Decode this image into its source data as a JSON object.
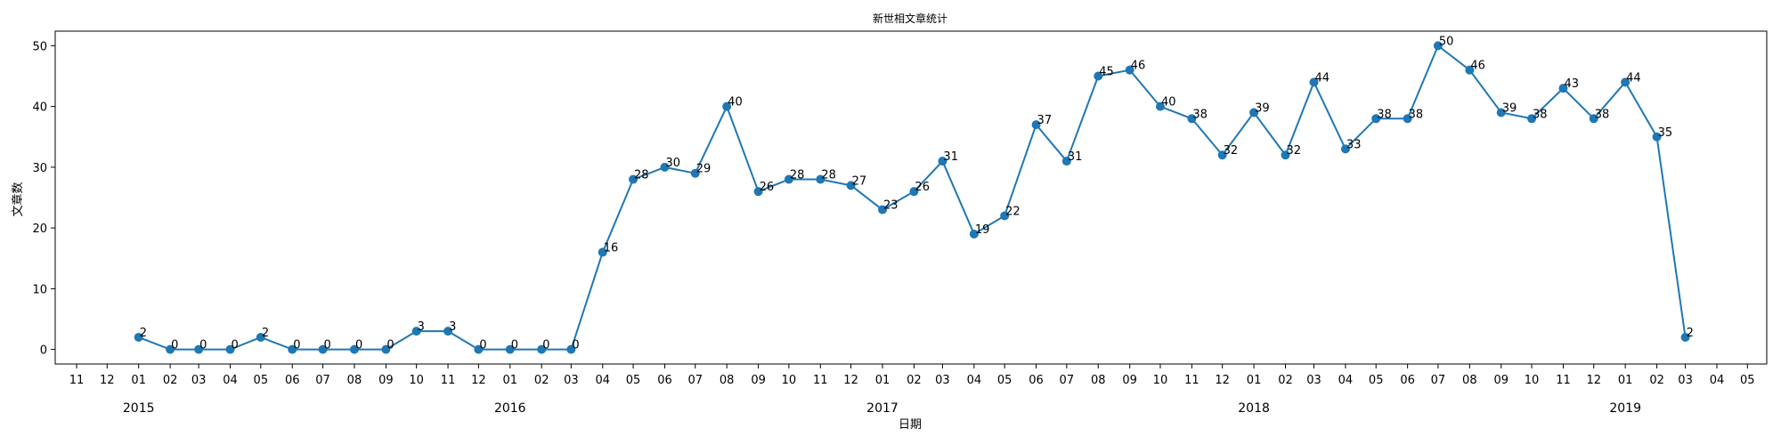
{
  "chart_data": {
    "type": "line",
    "title": "新世相文章统计",
    "xlabel": "日期",
    "ylabel": "文章数",
    "ylim": [
      -2.4,
      52.4
    ],
    "xlim": [
      "2014-10-11",
      "2019-05-20"
    ],
    "yticks": [
      0,
      10,
      20,
      30,
      40,
      50
    ],
    "grid": false,
    "legend": "none",
    "color": "#1f77b4",
    "x_ticks": [
      {
        "date": "2014-11",
        "label": "11"
      },
      {
        "date": "2014-12",
        "label": "12"
      },
      {
        "date": "2015-01",
        "label": "01"
      },
      {
        "date": "2015-02",
        "label": "02"
      },
      {
        "date": "2015-03",
        "label": "03"
      },
      {
        "date": "2015-04",
        "label": "04"
      },
      {
        "date": "2015-05",
        "label": "05"
      },
      {
        "date": "2015-06",
        "label": "06"
      },
      {
        "date": "2015-07",
        "label": "07"
      },
      {
        "date": "2015-08",
        "label": "08"
      },
      {
        "date": "2015-09",
        "label": "09"
      },
      {
        "date": "2015-10",
        "label": "10"
      },
      {
        "date": "2015-11",
        "label": "11"
      },
      {
        "date": "2015-12",
        "label": "12"
      },
      {
        "date": "2016-01",
        "label": "01"
      },
      {
        "date": "2016-02",
        "label": "02"
      },
      {
        "date": "2016-03",
        "label": "03"
      },
      {
        "date": "2016-04",
        "label": "04"
      },
      {
        "date": "2016-05",
        "label": "05"
      },
      {
        "date": "2016-06",
        "label": "06"
      },
      {
        "date": "2016-07",
        "label": "07"
      },
      {
        "date": "2016-08",
        "label": "08"
      },
      {
        "date": "2016-09",
        "label": "09"
      },
      {
        "date": "2016-10",
        "label": "10"
      },
      {
        "date": "2016-11",
        "label": "11"
      },
      {
        "date": "2016-12",
        "label": "12"
      },
      {
        "date": "2017-01",
        "label": "01"
      },
      {
        "date": "2017-02",
        "label": "02"
      },
      {
        "date": "2017-03",
        "label": "03"
      },
      {
        "date": "2017-04",
        "label": "04"
      },
      {
        "date": "2017-05",
        "label": "05"
      },
      {
        "date": "2017-06",
        "label": "06"
      },
      {
        "date": "2017-07",
        "label": "07"
      },
      {
        "date": "2017-08",
        "label": "08"
      },
      {
        "date": "2017-09",
        "label": "09"
      },
      {
        "date": "2017-10",
        "label": "10"
      },
      {
        "date": "2017-11",
        "label": "11"
      },
      {
        "date": "2017-12",
        "label": "12"
      },
      {
        "date": "2018-01",
        "label": "01"
      },
      {
        "date": "2018-02",
        "label": "02"
      },
      {
        "date": "2018-03",
        "label": "03"
      },
      {
        "date": "2018-04",
        "label": "04"
      },
      {
        "date": "2018-05",
        "label": "05"
      },
      {
        "date": "2018-06",
        "label": "06"
      },
      {
        "date": "2018-07",
        "label": "07"
      },
      {
        "date": "2018-08",
        "label": "08"
      },
      {
        "date": "2018-09",
        "label": "09"
      },
      {
        "date": "2018-10",
        "label": "10"
      },
      {
        "date": "2018-11",
        "label": "11"
      },
      {
        "date": "2018-12",
        "label": "12"
      },
      {
        "date": "2019-01",
        "label": "01"
      },
      {
        "date": "2019-02",
        "label": "02"
      },
      {
        "date": "2019-03",
        "label": "03"
      },
      {
        "date": "2019-04",
        "label": "04"
      },
      {
        "date": "2019-05",
        "label": "05"
      }
    ],
    "year_labels": [
      {
        "date": "2015-01",
        "label": "2015"
      },
      {
        "date": "2016-01",
        "label": "2016"
      },
      {
        "date": "2017-01",
        "label": "2017"
      },
      {
        "date": "2018-01",
        "label": "2018"
      },
      {
        "date": "2019-01",
        "label": "2019"
      }
    ],
    "series": [
      {
        "points": [
          {
            "x": "2015-01",
            "y": 2
          },
          {
            "x": "2015-02",
            "y": 0
          },
          {
            "x": "2015-03",
            "y": 0
          },
          {
            "x": "2015-04",
            "y": 0
          },
          {
            "x": "2015-05",
            "y": 2
          },
          {
            "x": "2015-06",
            "y": 0
          },
          {
            "x": "2015-07",
            "y": 0
          },
          {
            "x": "2015-08",
            "y": 0
          },
          {
            "x": "2015-09",
            "y": 0
          },
          {
            "x": "2015-10",
            "y": 3
          },
          {
            "x": "2015-11",
            "y": 3
          },
          {
            "x": "2015-12",
            "y": 0
          },
          {
            "x": "2016-01",
            "y": 0
          },
          {
            "x": "2016-02",
            "y": 0
          },
          {
            "x": "2016-03",
            "y": 0
          },
          {
            "x": "2016-04",
            "y": 16
          },
          {
            "x": "2016-05",
            "y": 28
          },
          {
            "x": "2016-06",
            "y": 30
          },
          {
            "x": "2016-07",
            "y": 29
          },
          {
            "x": "2016-08",
            "y": 40
          },
          {
            "x": "2016-09",
            "y": 26
          },
          {
            "x": "2016-10",
            "y": 28
          },
          {
            "x": "2016-11",
            "y": 28
          },
          {
            "x": "2016-12",
            "y": 27
          },
          {
            "x": "2017-01",
            "y": 23
          },
          {
            "x": "2017-02",
            "y": 26
          },
          {
            "x": "2017-03",
            "y": 31
          },
          {
            "x": "2017-04",
            "y": 19
          },
          {
            "x": "2017-05",
            "y": 22
          },
          {
            "x": "2017-06",
            "y": 37
          },
          {
            "x": "2017-07",
            "y": 31
          },
          {
            "x": "2017-08",
            "y": 45
          },
          {
            "x": "2017-09",
            "y": 46
          },
          {
            "x": "2017-10",
            "y": 40
          },
          {
            "x": "2017-11",
            "y": 38
          },
          {
            "x": "2017-12",
            "y": 32
          },
          {
            "x": "2018-01",
            "y": 39
          },
          {
            "x": "2018-02",
            "y": 32
          },
          {
            "x": "2018-03",
            "y": 44
          },
          {
            "x": "2018-04",
            "y": 33
          },
          {
            "x": "2018-05",
            "y": 38
          },
          {
            "x": "2018-06",
            "y": 38
          },
          {
            "x": "2018-07",
            "y": 50
          },
          {
            "x": "2018-08",
            "y": 46
          },
          {
            "x": "2018-09",
            "y": 39
          },
          {
            "x": "2018-10",
            "y": 38
          },
          {
            "x": "2018-11",
            "y": 43
          },
          {
            "x": "2018-12",
            "y": 38
          },
          {
            "x": "2019-01",
            "y": 44
          },
          {
            "x": "2019-02",
            "y": 35
          },
          {
            "x": "2019-03",
            "y": 2
          }
        ]
      }
    ]
  }
}
